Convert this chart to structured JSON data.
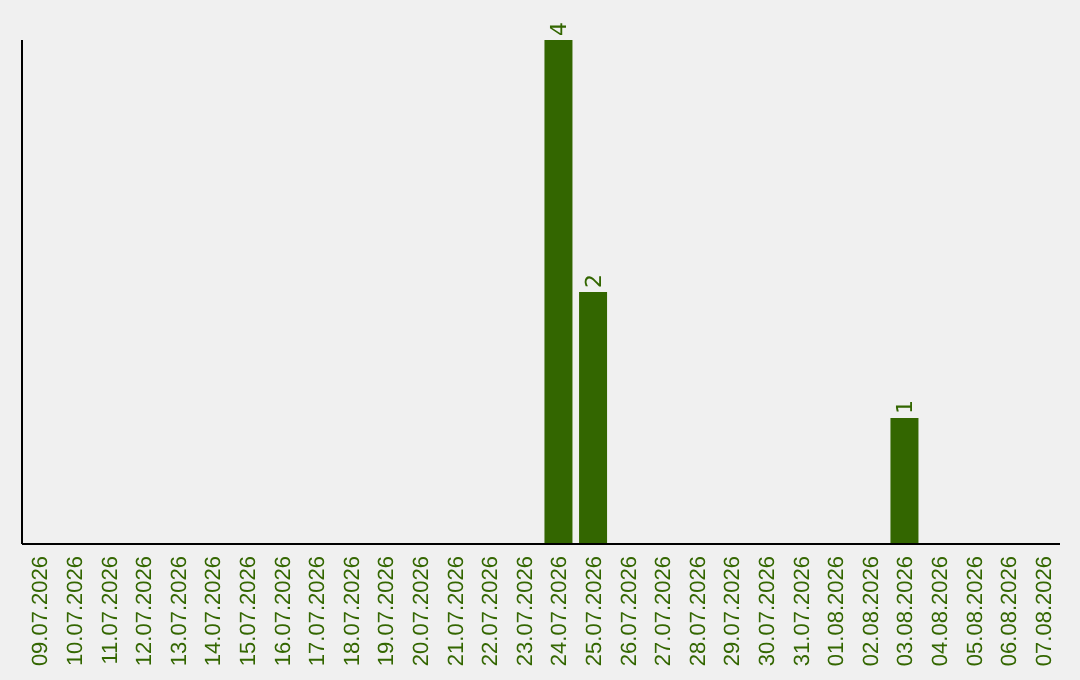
{
  "chart_data": {
    "type": "bar",
    "categories": [
      "09.07.2026",
      "10.07.2026",
      "11.07.2026",
      "12.07.2026",
      "13.07.2026",
      "14.07.2026",
      "15.07.2026",
      "16.07.2026",
      "17.07.2026",
      "18.07.2026",
      "19.07.2026",
      "20.07.2026",
      "21.07.2026",
      "22.07.2026",
      "23.07.2026",
      "24.07.2026",
      "25.07.2026",
      "26.07.2026",
      "27.07.2026",
      "28.07.2026",
      "29.07.2026",
      "30.07.2026",
      "31.07.2026",
      "01.08.2026",
      "02.08.2026",
      "03.08.2026",
      "04.08.2026",
      "05.08.2026",
      "06.08.2026",
      "07.08.2026"
    ],
    "values": [
      null,
      null,
      null,
      null,
      null,
      null,
      null,
      null,
      null,
      null,
      null,
      null,
      null,
      null,
      null,
      4,
      2,
      null,
      null,
      null,
      null,
      null,
      null,
      null,
      null,
      1,
      null,
      null,
      null,
      null
    ],
    "data_labels": true,
    "color": "#336600",
    "tick_labels": "x"
  }
}
